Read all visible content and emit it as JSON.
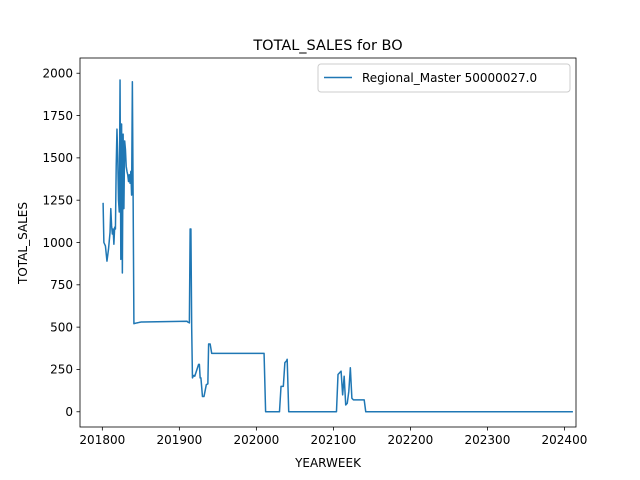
{
  "chart_data": {
    "type": "line",
    "title": "TOTAL_SALES for BO",
    "xlabel": "YEARWEEK",
    "ylabel": "TOTAL_SALES",
    "xlim": [
      201771,
      202415
    ],
    "ylim": [
      -90,
      2090
    ],
    "x_ticks": [
      201800,
      201900,
      202000,
      202100,
      202200,
      202300,
      202400
    ],
    "y_ticks": [
      0,
      250,
      500,
      750,
      1000,
      1250,
      1500,
      1750,
      2000
    ],
    "grid": false,
    "legend_position": "top-right",
    "series": [
      {
        "name": "Regional_Master 50000027.0",
        "color": "#1f77b4",
        "x": [
          201801,
          201802,
          201804,
          201806,
          201808,
          201810,
          201811,
          201812,
          201813,
          201814,
          201815,
          201816,
          201817,
          201818,
          201819,
          201820,
          201821,
          201822,
          201823,
          201824,
          201825,
          201826,
          201827,
          201828,
          201829,
          201830,
          201831,
          201832,
          201833,
          201834,
          201835,
          201836,
          201837,
          201838,
          201839,
          201840,
          201841,
          201842,
          201843,
          201844,
          201845,
          201846,
          201847,
          201848,
          201849,
          201850,
          201852,
          201910,
          201911,
          201912,
          201913,
          201914,
          201915,
          201916,
          201917,
          201918,
          201919,
          201920,
          201925,
          201926,
          201927,
          201928,
          201930,
          201932,
          201935,
          201937,
          201938,
          201940,
          201942,
          201944,
          201946,
          201948,
          201950,
          202010,
          202012,
          202014,
          202030,
          202032,
          202035,
          202037,
          202039,
          202040,
          202042,
          202044,
          202046,
          202104,
          202106,
          202110,
          202112,
          202114,
          202116,
          202118,
          202120,
          202122,
          202124,
          202126,
          202128,
          202130,
          202132,
          202134,
          202136,
          202138,
          202140,
          202142,
          202200,
          202220,
          202237,
          202238,
          202240,
          202300,
          202350,
          202410
        ],
        "y": [
          1230,
          1000,
          980,
          890,
          960,
          1060,
          1200,
          1100,
          1050,
          1080,
          990,
          1090,
          1080,
          1450,
          1670,
          1500,
          1250,
          1180,
          1960,
          900,
          1700,
          820,
          1640,
          1200,
          1600,
          1550,
          1450,
          1420,
          1400,
          1360,
          1400,
          1350,
          1420,
          1280,
          1950,
          1250,
          520,
          522,
          523,
          524,
          525,
          526,
          527,
          528,
          529,
          530,
          530,
          535,
          530,
          528,
          525,
          1080,
          1080,
          500,
          200,
          210,
          215,
          210,
          280,
          280,
          200,
          200,
          90,
          90,
          160,
          165,
          400,
          400,
          345,
          345,
          345,
          345,
          345,
          345,
          0,
          0,
          0,
          150,
          150,
          290,
          300,
          310,
          0,
          0,
          0,
          0,
          220,
          240,
          100,
          210,
          40,
          50,
          120,
          260,
          80,
          70,
          70,
          70,
          70,
          70,
          70,
          70,
          70,
          0,
          0,
          0,
          0,
          0,
          0,
          0,
          0,
          0
        ]
      }
    ]
  }
}
